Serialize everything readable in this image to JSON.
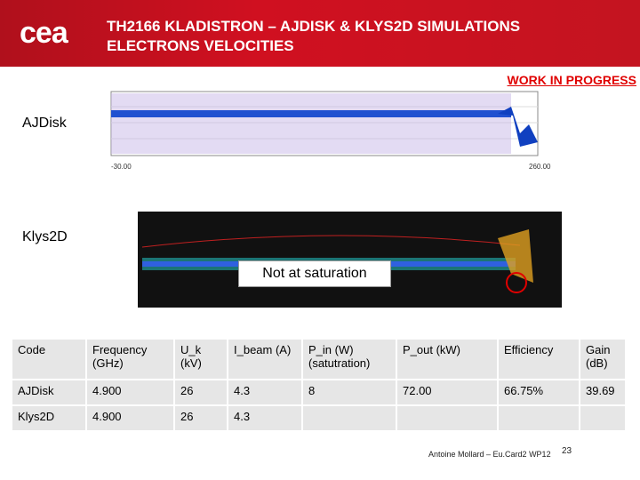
{
  "header": {
    "logo": "cea",
    "title_line1": "TH2166 KLADISTRON – AJDISK & KLYS2D SIMULATIONS",
    "title_line2": "ELECTRONS VELOCITIES"
  },
  "status": "WORK IN PROGRESS",
  "sections": [
    {
      "label": "AJDisk",
      "plot": {
        "x_start": "-30.00",
        "x_end": "260.00"
      }
    },
    {
      "label": "Klys2D",
      "callout": "Not at saturation"
    }
  ],
  "table": {
    "columns": [
      "Code",
      "Frequency (GHz)",
      "U_k (kV)",
      "I_beam (A)",
      "P_in (W) (satutration)",
      "P_out (kW)",
      "Efficiency",
      "Gain (dB)"
    ],
    "rows": [
      [
        "AJDisk",
        "4.900",
        "26",
        "4.3",
        "8",
        "72.00",
        "66.75%",
        "39.69"
      ],
      [
        "Klys2D",
        "4.900",
        "26",
        "4.3"
      ]
    ]
  },
  "footer": {
    "author": "Antoine Mollard – Eu.Card2 WP12",
    "page": "23"
  }
}
